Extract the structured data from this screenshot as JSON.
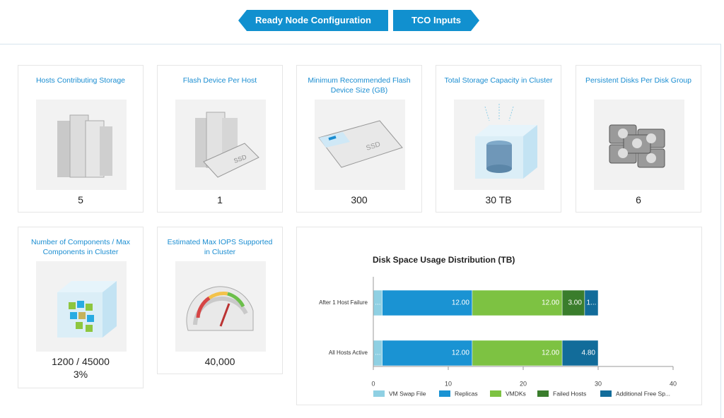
{
  "nav": {
    "items": [
      "Ready Node Configuration",
      "TCO Inputs"
    ]
  },
  "cards": [
    {
      "title": "Hosts Contributing Storage",
      "value": "5"
    },
    {
      "title": "Flash Device Per Host",
      "value": "1"
    },
    {
      "title": "Minimum Recommended Flash Device Size (GB)",
      "value": "300"
    },
    {
      "title": "Total Storage Capacity in Cluster",
      "value": "30 TB"
    },
    {
      "title": "Persistent Disks Per Disk Group",
      "value": "6"
    },
    {
      "title": "Number of Components / Max Components in Cluster",
      "value": "1200 / 45000",
      "sub": "3%"
    },
    {
      "title": "Estimated Max IOPS Supported in Cluster",
      "value": "40,000"
    }
  ],
  "chart_data": {
    "type": "bar",
    "orientation": "horizontal",
    "stacked": true,
    "title": "Disk Space Usage Distribution (TB)",
    "categories": [
      "After 1 Host Failure",
      "All Hosts Active"
    ],
    "series": [
      {
        "name": "VM Swap File",
        "color": "#8fd0e3",
        "values": [
          1.2,
          1.2
        ],
        "value_labels": [
          "...",
          "..."
        ]
      },
      {
        "name": "Replicas",
        "color": "#1a93d3",
        "values": [
          12,
          12
        ],
        "value_labels": [
          "12.00",
          "12.00"
        ]
      },
      {
        "name": "VMDKs",
        "color": "#7dc242",
        "values": [
          12,
          12
        ],
        "value_labels": [
          "12.00",
          "12.00"
        ]
      },
      {
        "name": "Failed Hosts",
        "color": "#3a7d2c",
        "values": [
          3,
          null
        ],
        "value_labels": [
          "3.00",
          null
        ]
      },
      {
        "name": "Additional Free Sp...",
        "color": "#126c9a",
        "values": [
          1.8,
          4.8
        ],
        "value_labels": [
          "1...",
          "4.80"
        ]
      }
    ],
    "xlim": [
      0,
      40
    ],
    "xticks": [
      0,
      10,
      20,
      30,
      40
    ],
    "grid": false,
    "legend": "bottom"
  }
}
